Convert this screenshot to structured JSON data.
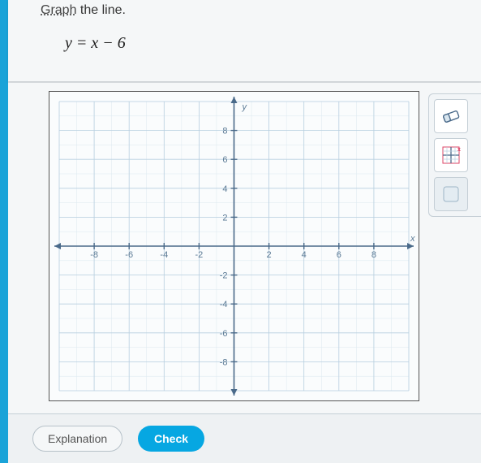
{
  "instruction": {
    "verb": "Graph",
    "rest": " the line."
  },
  "equation": "y = x − 6",
  "graph": {
    "xlim": [
      -10,
      10
    ],
    "ylim": [
      -10,
      10
    ],
    "major_step": 2,
    "minor_step": 1,
    "x_axis_label": "x",
    "y_axis_label": "y",
    "tick_labels_pos": [
      2,
      4,
      6,
      8
    ],
    "tick_labels_neg": [
      -2,
      -4,
      -6,
      -8
    ],
    "axis_color": "#4a6a8a",
    "major_grid_color": "#b8cfe0",
    "minor_grid_color": "#dce8f0",
    "background_color": "#fafcfd",
    "border_color": "#555555",
    "label_color": "#5b7a95",
    "label_fontsize": 11
  },
  "tools": {
    "eraser": "eraser-icon",
    "grid_reset": "grid-reset-icon",
    "help": "help-icon"
  },
  "buttons": {
    "explanation": "Explanation",
    "check": "Check"
  },
  "colors": {
    "accent": "#06a7e2",
    "panel_bg": "#f5f7f8",
    "page_bg": "#dde1e4"
  }
}
